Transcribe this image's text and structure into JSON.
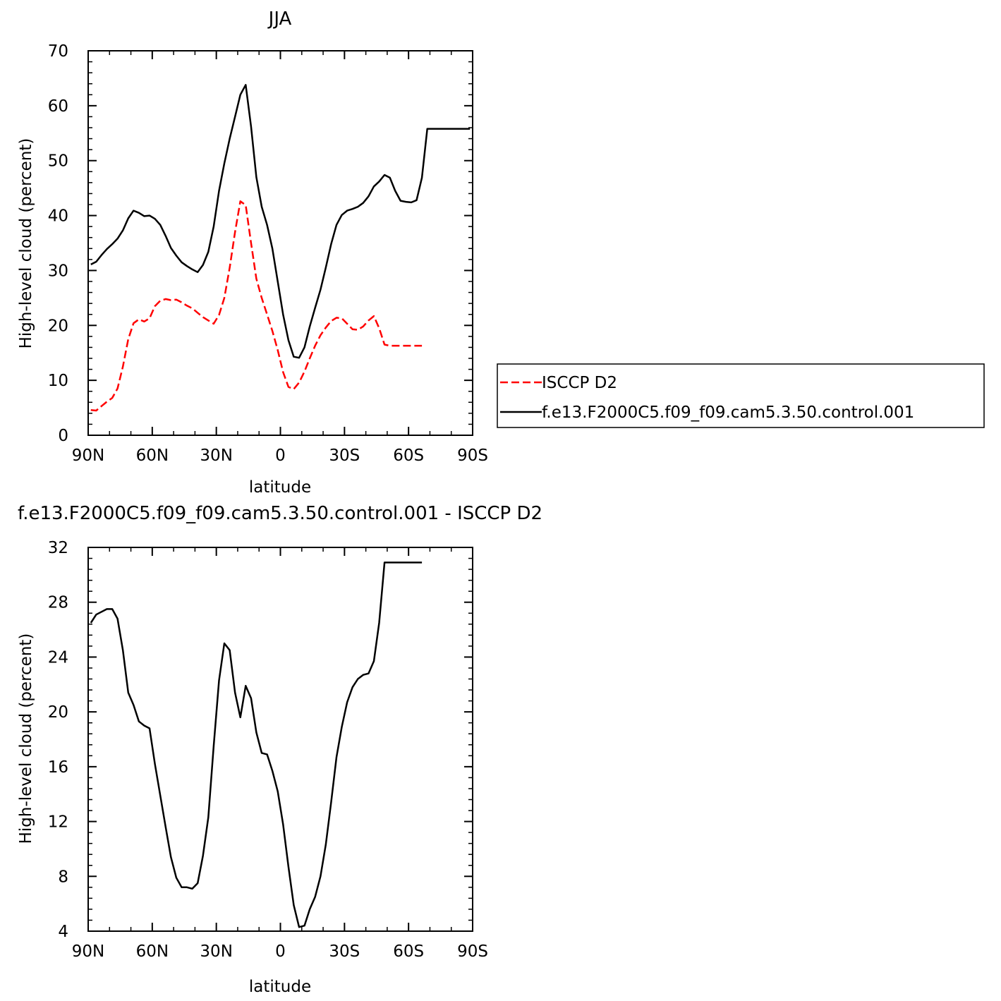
{
  "chart_data": [
    {
      "type": "line",
      "title": "JJA",
      "xlabel": "latitude",
      "ylabel": "High-level cloud (percent)",
      "xlim": [
        -90,
        90
      ],
      "ylim": [
        0,
        70
      ],
      "x_ticks": [
        -90,
        -60,
        -30,
        0,
        30,
        60,
        90
      ],
      "x_tick_labels": [
        "90N",
        "60N",
        "30N",
        "0",
        "30S",
        "60S",
        "90S"
      ],
      "y_ticks": [
        0,
        10,
        20,
        30,
        40,
        50,
        60,
        70
      ],
      "y_tick_labels": [
        "0",
        "10",
        "20",
        "30",
        "40",
        "50",
        "60",
        "70"
      ],
      "legend": {
        "placement": "right",
        "entries": [
          "ISCCP D2",
          "f.e13.F2000C5.f09_f09.cam5.3.50.control.001"
        ]
      },
      "series": [
        {
          "name": "ISCCP D2",
          "color": "#ff0000",
          "dash": "dashed",
          "x": [
            -88.75,
            -86.25,
            -83.75,
            -81.25,
            -78.75,
            -76.25,
            -73.75,
            -71.25,
            -68.75,
            -66.25,
            -63.75,
            -61.25,
            -58.75,
            -56.25,
            -53.75,
            -51.25,
            -48.75,
            -46.25,
            -43.75,
            -41.25,
            -38.75,
            -36.25,
            -33.75,
            -31.25,
            -28.75,
            -26.25,
            -23.75,
            -21.25,
            -18.75,
            -16.25,
            -13.75,
            -11.25,
            -8.75,
            -6.25,
            -3.75,
            -1.25,
            1.25,
            3.75,
            6.25,
            8.75,
            11.25,
            13.75,
            16.25,
            18.75,
            21.25,
            23.75,
            26.25,
            28.75,
            31.25,
            33.75,
            36.25,
            38.75,
            41.25,
            43.75,
            46.25,
            48.75,
            51.25,
            53.75,
            56.25,
            58.75,
            61.25,
            63.75,
            66.25
          ],
          "y": [
            4.6,
            4.5,
            5.3,
            6.1,
            6.8,
            8.5,
            12.5,
            17.5,
            20.4,
            21.1,
            20.7,
            21.3,
            23.5,
            24.5,
            24.8,
            24.6,
            24.7,
            24.2,
            23.6,
            23.1,
            22.3,
            21.5,
            20.9,
            20.3,
            21.9,
            25.0,
            30.5,
            37.0,
            42.6,
            41.9,
            35.0,
            28.5,
            25.0,
            22.0,
            19.0,
            15.5,
            11.5,
            8.8,
            8.4,
            9.6,
            11.6,
            14.0,
            16.3,
            18.2,
            19.6,
            20.8,
            21.4,
            21.3,
            20.3,
            19.3,
            19.2,
            19.8,
            20.9,
            21.7,
            19.5,
            16.5,
            16.3,
            16.3,
            16.3,
            16.3,
            16.3,
            16.3,
            16.3
          ]
        },
        {
          "name": "f.e13.F2000C5.f09_f09.cam5.3.50.control.001",
          "color": "#000000",
          "dash": "solid",
          "x": [
            -88.75,
            -86.25,
            -83.75,
            -81.25,
            -78.75,
            -76.25,
            -73.75,
            -71.25,
            -68.75,
            -66.25,
            -63.75,
            -61.25,
            -58.75,
            -56.25,
            -53.75,
            -51.25,
            -48.75,
            -46.25,
            -43.75,
            -41.25,
            -38.75,
            -36.25,
            -33.75,
            -31.25,
            -28.75,
            -26.25,
            -23.75,
            -21.25,
            -18.75,
            -16.25,
            -13.75,
            -11.25,
            -8.75,
            -6.25,
            -3.75,
            -1.25,
            1.25,
            3.75,
            6.25,
            8.75,
            11.25,
            13.75,
            16.25,
            18.75,
            21.25,
            23.75,
            26.25,
            28.75,
            31.25,
            33.75,
            36.25,
            38.75,
            41.25,
            43.75,
            46.25,
            48.75,
            51.25,
            53.75,
            56.25,
            58.75,
            61.25,
            63.75,
            66.25,
            68.75,
            71.25,
            73.75,
            76.25,
            78.75,
            81.25,
            83.75,
            86.25,
            88.75
          ],
          "y": [
            31.1,
            31.6,
            32.8,
            33.9,
            34.8,
            35.8,
            37.3,
            39.5,
            40.9,
            40.5,
            39.9,
            40.0,
            39.4,
            38.3,
            36.3,
            34.1,
            32.7,
            31.5,
            30.8,
            30.2,
            29.7,
            31.0,
            33.4,
            38.0,
            44.5,
            49.5,
            54.0,
            58.0,
            62.0,
            63.8,
            56.2,
            47.0,
            41.6,
            38.3,
            34.0,
            28.0,
            22.0,
            17.3,
            14.3,
            14.1,
            16.0,
            19.8,
            23.2,
            26.5,
            30.5,
            34.8,
            38.3,
            40.1,
            40.9,
            41.2,
            41.6,
            42.3,
            43.5,
            45.3,
            46.2,
            47.4,
            46.9,
            44.5,
            42.7,
            42.5,
            42.4,
            42.8,
            46.9,
            55.8,
            55.8,
            55.8,
            55.8,
            55.8,
            55.8,
            55.8,
            55.8,
            55.8
          ]
        }
      ]
    },
    {
      "type": "line",
      "title": "f.e13.F2000C5.f09_f09.cam5.3.50.control.001 - ISCCP D2",
      "xlabel": "latitude",
      "ylabel": "High-level cloud (percent)",
      "xlim": [
        -90,
        90
      ],
      "ylim": [
        4,
        32
      ],
      "x_ticks": [
        -90,
        -60,
        -30,
        0,
        30,
        60,
        90
      ],
      "x_tick_labels": [
        "90N",
        "60N",
        "30N",
        "0",
        "30S",
        "60S",
        "90S"
      ],
      "y_ticks": [
        4,
        8,
        12,
        16,
        20,
        24,
        28,
        32
      ],
      "y_tick_labels": [
        "4",
        "8",
        "12",
        "16",
        "20",
        "24",
        "28",
        "32"
      ],
      "series": [
        {
          "color": "#000000",
          "dash": "solid",
          "x": [
            -88.75,
            -86.25,
            -83.75,
            -81.25,
            -78.75,
            -76.25,
            -73.75,
            -71.25,
            -68.75,
            -66.25,
            -63.75,
            -61.25,
            -58.75,
            -56.25,
            -53.75,
            -51.25,
            -48.75,
            -46.25,
            -43.75,
            -41.25,
            -38.75,
            -36.25,
            -33.75,
            -31.25,
            -28.75,
            -26.25,
            -23.75,
            -21.25,
            -18.75,
            -16.25,
            -13.75,
            -11.25,
            -8.75,
            -6.25,
            -3.75,
            -1.25,
            1.25,
            3.75,
            6.25,
            8.75,
            11.25,
            13.75,
            16.25,
            18.75,
            21.25,
            23.75,
            26.25,
            28.75,
            31.25,
            33.75,
            36.25,
            38.75,
            41.25,
            43.75,
            46.25,
            48.75,
            51.25,
            53.75,
            56.25,
            58.75,
            61.25,
            63.75,
            66.25
          ],
          "y": [
            26.5,
            27.1,
            27.3,
            27.5,
            27.5,
            26.8,
            24.5,
            21.4,
            20.5,
            19.3,
            19.0,
            18.8,
            16.2,
            13.9,
            11.6,
            9.4,
            7.9,
            7.2,
            7.2,
            7.1,
            7.5,
            9.5,
            12.3,
            17.5,
            22.3,
            25.0,
            24.5,
            21.4,
            19.6,
            21.9,
            21.0,
            18.5,
            17.0,
            16.9,
            15.7,
            14.2,
            11.8,
            8.7,
            5.9,
            4.3,
            4.4,
            5.6,
            6.5,
            8.0,
            10.3,
            13.4,
            16.7,
            18.9,
            20.7,
            21.8,
            22.4,
            22.7,
            22.8,
            23.7,
            26.5,
            30.9,
            30.9,
            30.9,
            30.9,
            30.9,
            30.9,
            30.9,
            30.9
          ]
        }
      ]
    }
  ]
}
